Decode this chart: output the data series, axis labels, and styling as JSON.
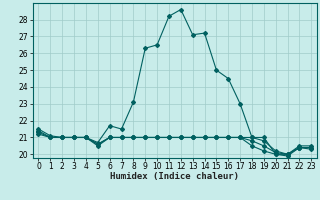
{
  "xlabel": "Humidex (Indice chaleur)",
  "background_color": "#c8ecea",
  "line_color": "#006060",
  "grid_color": "#a0ccca",
  "xlim": [
    -0.5,
    23.5
  ],
  "ylim": [
    19.8,
    29.0
  ],
  "yticks": [
    20,
    21,
    22,
    23,
    24,
    25,
    26,
    27,
    28
  ],
  "xticks": [
    0,
    1,
    2,
    3,
    4,
    5,
    6,
    7,
    8,
    9,
    10,
    11,
    12,
    13,
    14,
    15,
    16,
    17,
    18,
    19,
    20,
    21,
    22,
    23
  ],
  "series": [
    [
      21.5,
      21.1,
      21.0,
      21.0,
      21.0,
      20.7,
      21.7,
      21.5,
      23.1,
      26.3,
      26.5,
      28.2,
      28.6,
      27.1,
      27.2,
      25.0,
      24.5,
      23.0,
      21.0,
      21.0,
      20.0,
      20.0,
      20.5,
      20.5
    ],
    [
      21.4,
      21.0,
      21.0,
      21.0,
      21.0,
      20.6,
      21.0,
      21.0,
      21.0,
      21.0,
      21.0,
      21.0,
      21.0,
      21.0,
      21.0,
      21.0,
      21.0,
      21.0,
      21.0,
      20.8,
      20.2,
      20.0,
      20.4,
      20.4
    ],
    [
      21.3,
      21.0,
      21.0,
      21.0,
      21.0,
      20.6,
      21.0,
      21.0,
      21.0,
      21.0,
      21.0,
      21.0,
      21.0,
      21.0,
      21.0,
      21.0,
      21.0,
      21.0,
      20.8,
      20.5,
      20.1,
      20.0,
      20.4,
      20.4
    ],
    [
      21.2,
      21.0,
      21.0,
      21.0,
      21.0,
      20.5,
      21.0,
      21.0,
      21.0,
      21.0,
      21.0,
      21.0,
      21.0,
      21.0,
      21.0,
      21.0,
      21.0,
      21.0,
      20.5,
      20.2,
      20.0,
      19.9,
      20.4,
      20.3
    ]
  ]
}
